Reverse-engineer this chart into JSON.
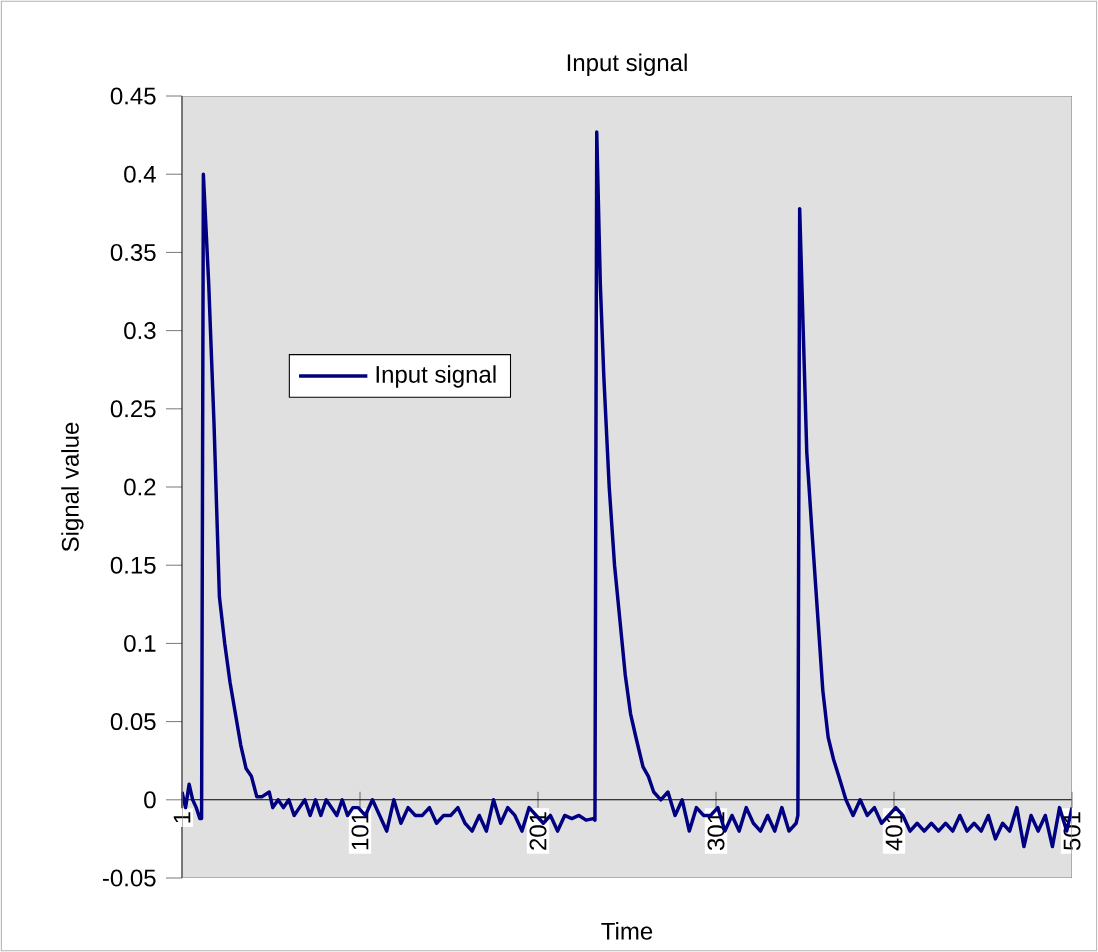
{
  "chart_data": {
    "type": "line",
    "title": "Input signal",
    "xlabel": "Time",
    "ylabel": "Signal value",
    "xlim": [
      1,
      501
    ],
    "xticks": [
      1,
      101,
      201,
      301,
      401,
      501
    ],
    "ylim": [
      -0.05,
      0.45
    ],
    "yticks": [
      -0.05,
      0,
      0.05,
      0.1,
      0.15,
      0.2,
      0.25,
      0.3,
      0.35,
      0.4,
      0.45
    ],
    "legend": "left",
    "grid": false,
    "marker": "none",
    "line_style": "solid",
    "series": [
      {
        "name": "Input signal",
        "color": "#000080",
        "x": [
          1,
          3,
          5,
          7,
          9,
          11,
          12,
          13,
          16,
          19,
          22,
          25,
          28,
          31,
          34,
          37,
          40,
          43,
          46,
          50,
          52,
          55,
          58,
          61,
          64,
          67,
          70,
          73,
          76,
          79,
          82,
          85,
          88,
          91,
          94,
          97,
          100,
          104,
          108,
          112,
          116,
          120,
          124,
          128,
          132,
          136,
          140,
          144,
          148,
          152,
          156,
          160,
          164,
          168,
          172,
          176,
          180,
          184,
          188,
          192,
          196,
          200,
          204,
          208,
          212,
          216,
          220,
          224,
          228,
          232,
          233,
          234,
          236,
          238,
          241,
          244,
          247,
          250,
          253,
          256,
          260,
          263,
          266,
          270,
          274,
          278,
          282,
          286,
          290,
          294,
          298,
          302,
          306,
          310,
          314,
          318,
          322,
          326,
          330,
          334,
          338,
          342,
          346,
          347,
          348,
          350,
          352,
          355,
          358,
          361,
          364,
          367,
          370,
          374,
          378,
          382,
          386,
          390,
          394,
          398,
          402,
          406,
          410,
          414,
          418,
          422,
          426,
          430,
          434,
          438,
          442,
          446,
          450,
          454,
          458,
          462,
          466,
          470,
          474,
          478,
          482,
          486,
          490,
          494,
          498,
          501
        ],
        "values": [
          0.005,
          -0.005,
          0.01,
          0,
          -0.005,
          -0.012,
          -0.012,
          0.4,
          0.33,
          0.24,
          0.13,
          0.1,
          0.075,
          0.055,
          0.035,
          0.02,
          0.015,
          0.002,
          0.002,
          0.005,
          -0.005,
          0,
          -0.005,
          0,
          -0.01,
          -0.005,
          0,
          -0.01,
          0,
          -0.01,
          0,
          -0.005,
          -0.01,
          0,
          -0.01,
          -0.005,
          -0.005,
          -0.01,
          0,
          -0.01,
          -0.02,
          0,
          -0.015,
          -0.005,
          -0.01,
          -0.01,
          -0.005,
          -0.015,
          -0.01,
          -0.01,
          -0.005,
          -0.015,
          -0.02,
          -0.01,
          -0.02,
          0,
          -0.015,
          -0.005,
          -0.01,
          -0.02,
          -0.005,
          -0.01,
          -0.015,
          -0.01,
          -0.02,
          -0.01,
          -0.012,
          -0.01,
          -0.013,
          -0.012,
          -0.013,
          0.427,
          0.33,
          0.27,
          0.2,
          0.15,
          0.115,
          0.08,
          0.055,
          0.04,
          0.021,
          0.015,
          0.005,
          0,
          0.005,
          -0.01,
          0,
          -0.02,
          -0.005,
          -0.01,
          -0.01,
          -0.005,
          -0.02,
          -0.01,
          -0.02,
          -0.005,
          -0.015,
          -0.02,
          -0.01,
          -0.02,
          -0.005,
          -0.02,
          -0.015,
          -0.01,
          0.378,
          0.3,
          0.222,
          0.17,
          0.12,
          0.07,
          0.04,
          0.026,
          0.015,
          0,
          -0.01,
          0,
          -0.01,
          -0.005,
          -0.015,
          -0.01,
          -0.005,
          -0.01,
          -0.02,
          -0.015,
          -0.02,
          -0.015,
          -0.02,
          -0.015,
          -0.02,
          -0.01,
          -0.02,
          -0.015,
          -0.02,
          -0.01,
          -0.025,
          -0.015,
          -0.02,
          -0.005,
          -0.03,
          -0.01,
          -0.02,
          -0.01,
          -0.03,
          -0.005,
          -0.02,
          -0.005
        ]
      }
    ]
  }
}
